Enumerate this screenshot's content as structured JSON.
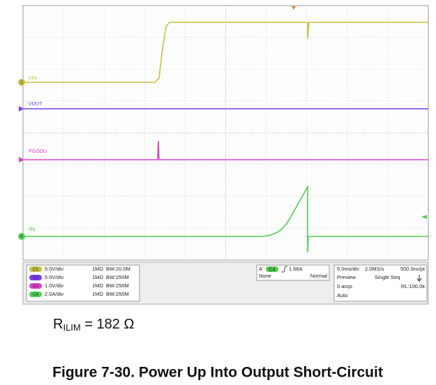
{
  "scope": {
    "channels": [
      {
        "label": "VIN",
        "marker": "1",
        "badge": "C1",
        "scale": "5.0V/div",
        "impedance": "1MΩ",
        "bandwidth": "BW:20.0M"
      },
      {
        "label": "VOUT",
        "badge": "C2",
        "scale": "5.0V/div",
        "impedance": "1MΩ",
        "bandwidth": "BW:250M"
      },
      {
        "label": "PGOOD",
        "badge": "C3",
        "scale": "1.0V/div",
        "impedance": "1MΩ",
        "bandwidth": "BW:250M"
      },
      {
        "label": "IIN",
        "marker": "4",
        "badge": "C4",
        "scale": "2.0A/div",
        "impedance": "1MΩ",
        "bandwidth": "BW:250M"
      }
    ],
    "trigger": {
      "mode_badge": "A'",
      "source": "C4",
      "level": "1.68A",
      "coupling": "None",
      "sweep": "Normal"
    },
    "timebase": {
      "scale": "5.0ms/div",
      "rate": "2.0MS/s",
      "resolution": "500.0ns/pt",
      "state": "Preview",
      "acq_mode": "Single Seq",
      "acqs": "0 acqs",
      "record": "RL:100.0k",
      "trigger_mode": "Auto"
    }
  },
  "caption": {
    "symbol": "R",
    "subscript": "ILIM",
    "equation": " = 182 Ω"
  },
  "title": "Figure 7-30. Power Up Into Output Short-Circuit"
}
